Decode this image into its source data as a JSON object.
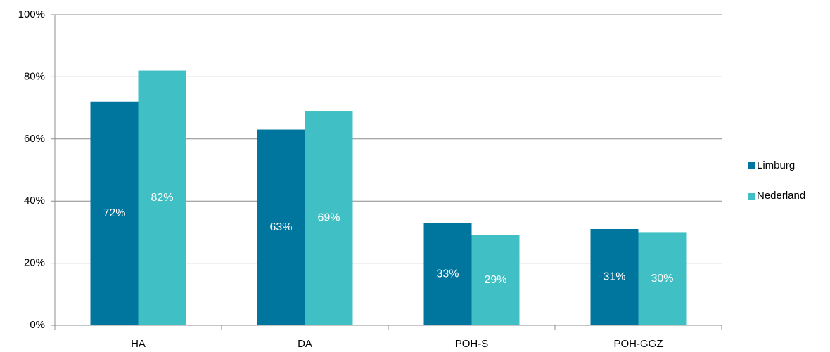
{
  "chart_data": {
    "type": "bar",
    "categories": [
      "HA",
      "DA",
      "POH-S",
      "POH-GGZ"
    ],
    "series": [
      {
        "name": "Limburg",
        "color": "#00759e",
        "values": [
          72,
          63,
          33,
          31
        ],
        "value_labels": [
          "72%",
          "63%",
          "33%",
          "31%"
        ]
      },
      {
        "name": "Nederland",
        "color": "#40c0c4",
        "values": [
          82,
          69,
          29,
          30
        ],
        "value_labels": [
          "82%",
          "69%",
          "29%",
          "30%"
        ]
      }
    ],
    "ylim": [
      0,
      100
    ],
    "yticks": [
      {
        "value": 0,
        "label": "0%"
      },
      {
        "value": 20,
        "label": "20%"
      },
      {
        "value": 40,
        "label": "40%"
      },
      {
        "value": 60,
        "label": "60%"
      },
      {
        "value": 80,
        "label": "80%"
      },
      {
        "value": 100,
        "label": "100%"
      }
    ],
    "grid": true,
    "legend": "right"
  }
}
